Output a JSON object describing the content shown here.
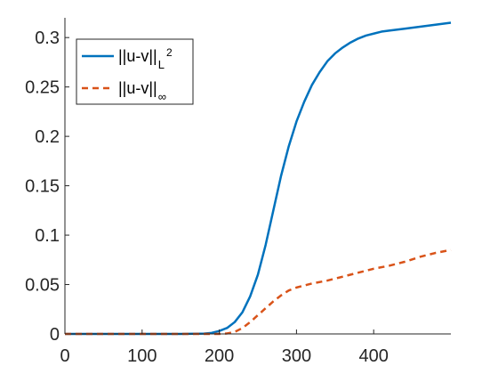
{
  "chart_data": {
    "type": "line",
    "title": "",
    "xlabel": "",
    "ylabel": "",
    "xlim": [
      0,
      500
    ],
    "ylim": [
      0,
      0.32
    ],
    "xticks": [
      0,
      100,
      200,
      300,
      400
    ],
    "xtick_labels": [
      "0",
      "100",
      "200",
      "300",
      "400"
    ],
    "yticks": [
      0,
      0.05,
      0.1,
      0.15,
      0.2,
      0.25,
      0.3
    ],
    "ytick_labels": [
      "0",
      "0.05",
      "0.1",
      "0.15",
      "0.2",
      "0.25",
      "0.3"
    ],
    "grid": false,
    "legend_position": "top-left",
    "series": [
      {
        "legend_main": "||u-v||",
        "legend_sub": "L",
        "legend_sup": "2",
        "color": "#0072BD",
        "style": "solid",
        "x": [
          0,
          50,
          100,
          150,
          180,
          190,
          200,
          210,
          220,
          230,
          240,
          250,
          260,
          270,
          280,
          290,
          300,
          310,
          320,
          330,
          340,
          350,
          360,
          370,
          380,
          390,
          400,
          410,
          420,
          440,
          460,
          480,
          500
        ],
        "y": [
          0,
          0,
          0,
          0,
          0.0003,
          0.001,
          0.003,
          0.006,
          0.012,
          0.022,
          0.038,
          0.06,
          0.09,
          0.125,
          0.16,
          0.19,
          0.215,
          0.235,
          0.252,
          0.265,
          0.276,
          0.284,
          0.29,
          0.295,
          0.299,
          0.302,
          0.304,
          0.306,
          0.307,
          0.309,
          0.311,
          0.313,
          0.315
        ]
      },
      {
        "legend_main": "||u-v||",
        "legend_sub": "∞",
        "legend_sup": "",
        "color": "#D95319",
        "style": "dashed",
        "x": [
          0,
          50,
          100,
          150,
          200,
          210,
          220,
          230,
          240,
          250,
          260,
          270,
          280,
          290,
          300,
          310,
          320,
          340,
          360,
          380,
          400,
          420,
          440,
          460,
          480,
          500
        ],
        "y": [
          0,
          0,
          0,
          0,
          0,
          0.0005,
          0.002,
          0.006,
          0.012,
          0.019,
          0.026,
          0.033,
          0.039,
          0.044,
          0.047,
          0.049,
          0.051,
          0.054,
          0.058,
          0.062,
          0.066,
          0.069,
          0.073,
          0.078,
          0.082,
          0.085
        ]
      }
    ]
  }
}
